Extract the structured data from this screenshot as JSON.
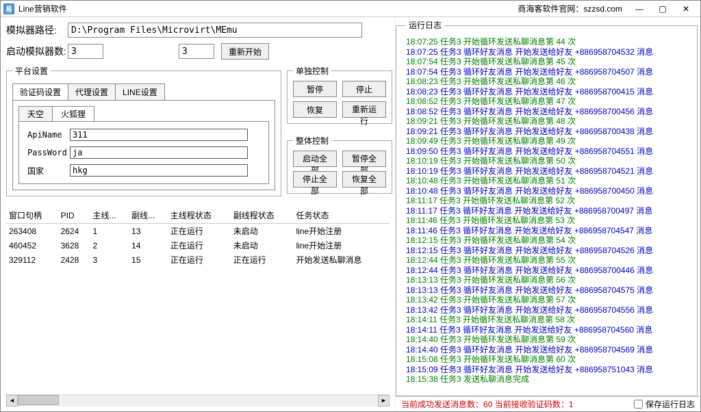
{
  "window": {
    "title": "Line营销软件",
    "rightText": "商海客软件官网：szzsd.com"
  },
  "form": {
    "pathLabel": "模拟器路径:",
    "pathValue": "D:\\Program Files\\Microvirt\\MEmu",
    "countLabel": "启动模拟器数:",
    "countValue1": "3",
    "countValue2": "3",
    "restartBtn": "重新开始"
  },
  "platformLegend": "平台设置",
  "tabs": {
    "t1": "验证码设置",
    "t2": "代理设置",
    "t3": "LINE设置"
  },
  "subtabs": {
    "s1": "天空",
    "s2": "火狐狸"
  },
  "api": {
    "nameLabel": "ApiName",
    "nameValue": "311",
    "pwLabel": "PassWord",
    "pwValue": "ja",
    "countryLabel": "国家",
    "countryValue": "hkg"
  },
  "singleCtrl": {
    "legend": "单独控制",
    "pause": "暂停",
    "stop": "停止",
    "resume": "恢复",
    "rerun": "重新运行"
  },
  "allCtrl": {
    "legend": "整体控制",
    "startAll": "启动全部",
    "pauseAll": "暂停全部",
    "stopAll": "停止全部",
    "resumeAll": "恢复全部"
  },
  "tableHeaders": {
    "h1": "窗口句柄",
    "h2": "PID",
    "h3": "主线...",
    "h4": "副线...",
    "h5": "主线程状态",
    "h6": "副线程状态",
    "h7": "任务状态"
  },
  "tableRows": [
    {
      "c1": "263408",
      "c2": "2624",
      "c3": "1",
      "c4": "13",
      "c5": "正在运行",
      "c6": "未启动",
      "c7": "line开始注册"
    },
    {
      "c1": "460452",
      "c2": "3628",
      "c3": "2",
      "c4": "14",
      "c5": "正在运行",
      "c6": "未启动",
      "c7": "line开始注册"
    },
    {
      "c1": "329112",
      "c2": "2428",
      "c3": "3",
      "c4": "15",
      "c5": "正在运行",
      "c6": "正在运行",
      "c7": "开始发送私聊消息"
    }
  ],
  "logLegend": "运行日志",
  "logs": [
    {
      "c": "g",
      "t": "18:07:25 任务3 开始循环发送私聊消息第 44 次"
    },
    {
      "c": "b",
      "t": "18:07:25 任务3 循环好友消息 开始发送给好友 +886958704532 消息"
    },
    {
      "c": "g",
      "t": "18:07:54 任务3 开始循环发送私聊消息第 45 次"
    },
    {
      "c": "b",
      "t": "18:07:54 任务3 循环好友消息 开始发送给好友 +886958704507 消息"
    },
    {
      "c": "g",
      "t": "18:08:23 任务3 开始循环发送私聊消息第 46 次"
    },
    {
      "c": "b",
      "t": "18:08:23 任务3 循环好友消息 开始发送给好友 +886958700415 消息"
    },
    {
      "c": "g",
      "t": "18:08:52 任务3 开始循环发送私聊消息第 47 次"
    },
    {
      "c": "b",
      "t": "18:08:52 任务3 循环好友消息 开始发送给好友 +886958700456 消息"
    },
    {
      "c": "g",
      "t": "18:09:21 任务3 开始循环发送私聊消息第 48 次"
    },
    {
      "c": "b",
      "t": "18:09:21 任务3 循环好友消息 开始发送给好友 +886958700438 消息"
    },
    {
      "c": "g",
      "t": "18:09:49 任务3 开始循环发送私聊消息第 49 次"
    },
    {
      "c": "b",
      "t": "18:09:50 任务3 循环好友消息 开始发送给好友 +886958704551 消息"
    },
    {
      "c": "g",
      "t": "18:10:19 任务3 开始循环发送私聊消息第 50 次"
    },
    {
      "c": "b",
      "t": "18:10:19 任务3 循环好友消息 开始发送给好友 +886958704521 消息"
    },
    {
      "c": "g",
      "t": "18:10:48 任务3 开始循环发送私聊消息第 51 次"
    },
    {
      "c": "b",
      "t": "18:10:48 任务3 循环好友消息 开始发送给好友 +886958700450 消息"
    },
    {
      "c": "g",
      "t": "18:11:17 任务3 开始循环发送私聊消息第 52 次"
    },
    {
      "c": "b",
      "t": "18:11:17 任务3 循环好友消息 开始发送给好友 +886958700497 消息"
    },
    {
      "c": "g",
      "t": "18:11:46 任务3 开始循环发送私聊消息第 53 次"
    },
    {
      "c": "b",
      "t": "18:11:46 任务3 循环好友消息 开始发送给好友 +886958704547 消息"
    },
    {
      "c": "g",
      "t": "18:12:15 任务3 开始循环发送私聊消息第 54 次"
    },
    {
      "c": "b",
      "t": "18:12:15 任务3 循环好友消息 开始发送给好友 +886958704526 消息"
    },
    {
      "c": "g",
      "t": "18:12:44 任务3 开始循环发送私聊消息第 55 次"
    },
    {
      "c": "b",
      "t": "18:12:44 任务3 循环好友消息 开始发送给好友 +886958700446 消息"
    },
    {
      "c": "g",
      "t": "18:13:13 任务3 开始循环发送私聊消息第 56 次"
    },
    {
      "c": "b",
      "t": "18:13:13 任务3 循环好友消息 开始发送给好友 +886958704575 消息"
    },
    {
      "c": "g",
      "t": "18:13:42 任务3 开始循环发送私聊消息第 57 次"
    },
    {
      "c": "b",
      "t": "18:13:42 任务3 循环好友消息 开始发送给好友 +886958704556 消息"
    },
    {
      "c": "g",
      "t": "18:14:11 任务3 开始循环发送私聊消息第 58 次"
    },
    {
      "c": "b",
      "t": "18:14:11 任务3 循环好友消息 开始发送给好友 +886958704560 消息"
    },
    {
      "c": "g",
      "t": "18:14:40 任务3 开始循环发送私聊消息第 59 次"
    },
    {
      "c": "b",
      "t": "18:14:40 任务3 循环好友消息 开始发送给好友 +886958704569 消息"
    },
    {
      "c": "g",
      "t": "18:15:08 任务3 开始循环发送私聊消息第 60 次"
    },
    {
      "c": "b",
      "t": "18:15:09 任务3 循环好友消息 开始发送给好友 +886958751043 消息"
    },
    {
      "c": "g",
      "t": "18:15:38 任务3 发送私聊消息完成"
    }
  ],
  "status": {
    "sentLabel": "当前成功发送消息数：",
    "sentValue": "60",
    "codeLabel": " 当前接收验证码数：",
    "codeValue": "1",
    "saveLog": "保存运行日志"
  }
}
